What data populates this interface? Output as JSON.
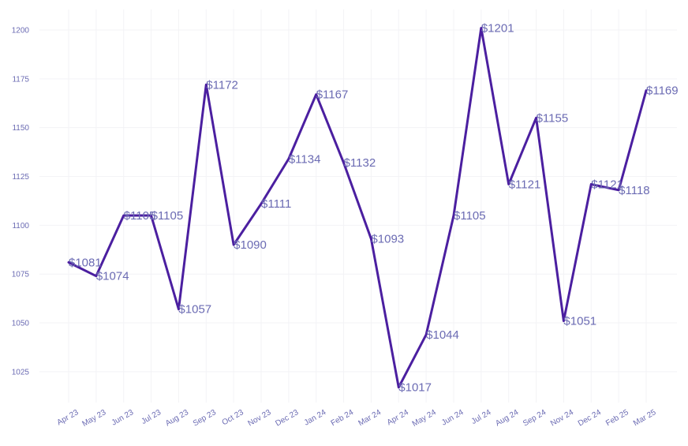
{
  "chart_data": {
    "type": "line",
    "title": "",
    "xlabel": "",
    "ylabel": "",
    "categories": [
      "Apr 23",
      "May 23",
      "Jun 23",
      "Jul 23",
      "Aug 23",
      "Sep 23",
      "Oct 23",
      "Nov 23",
      "Dec 23",
      "Jan 24",
      "Feb 24",
      "Mar 24",
      "Apr 24",
      "May 24",
      "Jun 24",
      "Jul 24",
      "Aug 24",
      "Sep 24",
      "Nov 24",
      "Dec 24",
      "Feb 25",
      "Mar 25"
    ],
    "values": [
      1081,
      1074,
      1105,
      1105,
      1057,
      1172,
      1090,
      1111,
      1134,
      1167,
      1132,
      1093,
      1017,
      1044,
      1105,
      1201,
      1121,
      1155,
      1051,
      1121,
      1118,
      1169
    ],
    "data_labels": [
      "$1081",
      "$1074",
      "$1105",
      "$1105",
      "$1057",
      "$1172",
      "$1090",
      "$1111",
      "$1134",
      "$1167",
      "$1132",
      "$1093",
      "$1017",
      "$1044",
      "$1105",
      "$1201",
      "$1121",
      "$1155",
      "$1051",
      "$1121",
      "$1118",
      "$1169"
    ],
    "y_ticks": [
      "1025",
      "1050",
      "1075",
      "1100",
      "1125",
      "1150",
      "1175",
      "1200"
    ],
    "ylim": [
      1008,
      1209
    ],
    "grid": true,
    "legend": "none",
    "colors": {
      "line": "#4b1fa0",
      "text": "#6b6bb3",
      "grid": "#f3f3f6"
    }
  }
}
